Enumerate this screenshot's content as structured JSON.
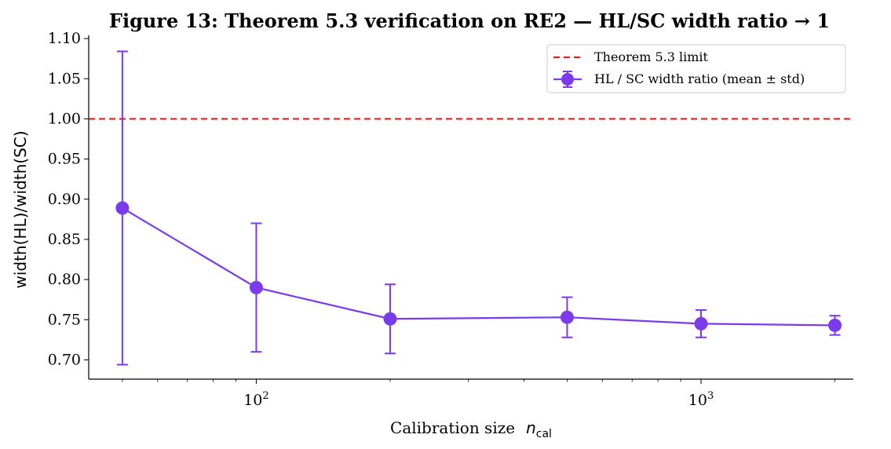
{
  "chart_data": {
    "type": "line",
    "title": "Figure 13: Theorem 5.3 verification on RE2 — HL/SC width ratio → 1",
    "xlabel": "Calibration size",
    "xlabel_symbol": "n",
    "xlabel_subscript": "cal",
    "ylabel": "width(HL)/width(SC)",
    "x_scale": "log",
    "xlim": [
      42,
      2200
    ],
    "ylim": [
      0.676,
      1.104
    ],
    "x_tick_labels": [
      {
        "value": 100,
        "base": "10",
        "exp": "2"
      },
      {
        "value": 1000,
        "base": "10",
        "exp": "3"
      }
    ],
    "y_ticks": [
      0.7,
      0.75,
      0.8,
      0.85,
      0.9,
      0.95,
      1.0,
      1.05,
      1.1
    ],
    "y_tick_labels": [
      "0.70",
      "0.75",
      "0.80",
      "0.85",
      "0.90",
      "0.95",
      "1.00",
      "1.05",
      "1.10"
    ],
    "reference_line": {
      "y": 1.0,
      "label": "Theorem 5.3 limit",
      "color": "#dd2222",
      "style": "dashed"
    },
    "series": [
      {
        "name": "HL / SC width ratio (mean ± std)",
        "color": "#7c3aed",
        "x": [
          50,
          100,
          200,
          500,
          1000,
          2000
        ],
        "y": [
          0.889,
          0.79,
          0.751,
          0.753,
          0.745,
          0.743
        ],
        "err": [
          0.195,
          0.08,
          0.043,
          0.025,
          0.017,
          0.012
        ]
      }
    ],
    "legend_position": "top-right",
    "grid": false
  }
}
